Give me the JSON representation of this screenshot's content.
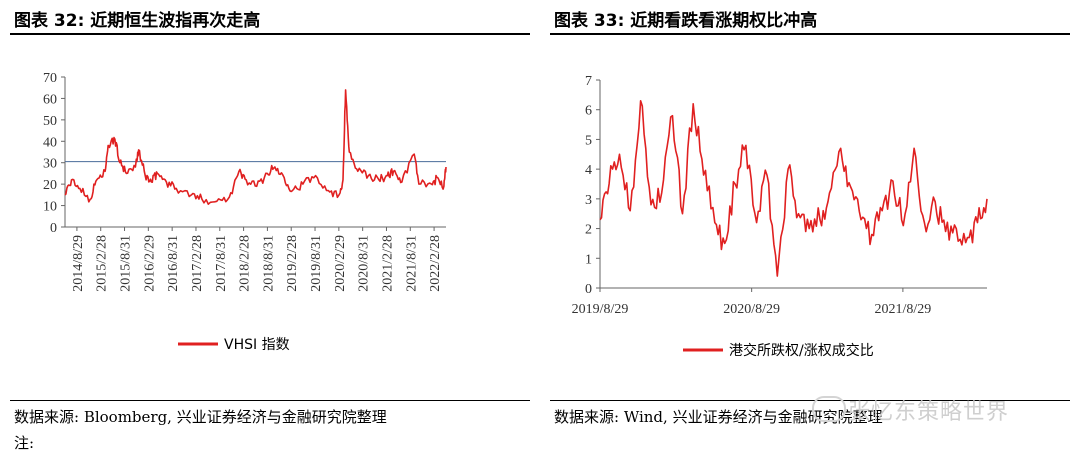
{
  "left": {
    "title": "图表 32:  近期恒生波指再次走高",
    "source": "数据来源:  Bloomberg, 兴业证券经济与金融研究院整理",
    "note": "注:"
  },
  "right": {
    "title": "图表 33:  近期看跌看涨期权比冲高",
    "source": "数据来源:  Wind, 兴业证券经济与金融研究院整理"
  },
  "watermark": "张忆东策略世界",
  "chart_data": [
    {
      "type": "line",
      "title": "",
      "xlabel": "",
      "ylabel": "",
      "ylim": [
        0,
        70
      ],
      "yticks": [
        0,
        10,
        20,
        30,
        40,
        50,
        60,
        70
      ],
      "x_tick_labels": [
        "2014/8/29",
        "2015/2/28",
        "2015/8/31",
        "2016/2/29",
        "2016/8/31",
        "2017/2/28",
        "2017/8/31",
        "2018/2/28",
        "2018/8/31",
        "2019/2/28",
        "2019/8/31",
        "2020/2/29",
        "2020/8/31",
        "2021/2/28",
        "2021/8/31",
        "2022/2/28"
      ],
      "legend": "bottom",
      "reference_line": {
        "y": 30.5,
        "color": "#4a6b9a"
      },
      "series": [
        {
          "name": "VHSI 指数",
          "color": "#e02020",
          "x": [
            "2014/8/29",
            "2014/10/15",
            "2014/12/15",
            "2015/2/28",
            "2015/4/15",
            "2015/6/15",
            "2015/7/10",
            "2015/8/25",
            "2015/9/30",
            "2015/11/15",
            "2016/1/20",
            "2016/2/12",
            "2016/3/31",
            "2016/5/15",
            "2016/6/27",
            "2016/8/31",
            "2016/11/10",
            "2017/2/28",
            "2017/5/15",
            "2017/8/31",
            "2017/11/30",
            "2018/2/7",
            "2018/3/31",
            "2018/6/15",
            "2018/8/31",
            "2018/10/25",
            "2018/12/31",
            "2019/2/28",
            "2019/5/15",
            "2019/8/15",
            "2019/11/15",
            "2020/1/31",
            "2020/2/29",
            "2020/3/19",
            "2020/4/15",
            "2020/6/15",
            "2020/8/31",
            "2020/11/15",
            "2021/1/15",
            "2021/2/28",
            "2021/4/30",
            "2021/7/28",
            "2021/8/31",
            "2021/11/30",
            "2022/1/15",
            "2022/2/28",
            "2022/3/15"
          ],
          "values": [
            15,
            22,
            18,
            13,
            22,
            26,
            38,
            41,
            30,
            25,
            28,
            36,
            24,
            21,
            25,
            21,
            18,
            15,
            13,
            12,
            14,
            26,
            22,
            19,
            25,
            28,
            23,
            17,
            20,
            24,
            17,
            15,
            22,
            64,
            35,
            26,
            24,
            22,
            24,
            26,
            21,
            34,
            20,
            20,
            23,
            19,
            28
          ]
        }
      ]
    },
    {
      "type": "line",
      "title": "",
      "xlabel": "",
      "ylabel": "",
      "ylim": [
        0,
        7
      ],
      "yticks": [
        0,
        1,
        2,
        3,
        4,
        5,
        6,
        7
      ],
      "x_tick_labels": [
        "2019/8/29",
        "2020/8/29",
        "2021/8/29"
      ],
      "legend": "bottom",
      "series": [
        {
          "name": "港交所跌权/涨权成交比",
          "color": "#e02020",
          "x": [
            "2019/8/29",
            "2019/9/20",
            "2019/10/15",
            "2019/11/10",
            "2019/12/5",
            "2019/12/30",
            "2020/1/25",
            "2020/2/20",
            "2020/3/15",
            "2020/4/10",
            "2020/5/5",
            "2020/6/1",
            "2020/6/25",
            "2020/7/20",
            "2020/8/15",
            "2020/9/10",
            "2020/10/5",
            "2020/10/30",
            "2020/11/25",
            "2020/12/20",
            "2021/1/15",
            "2021/2/10",
            "2021/3/5",
            "2021/4/1",
            "2021/4/25",
            "2021/5/20",
            "2021/6/15",
            "2021/7/10",
            "2021/8/5",
            "2021/8/30",
            "2021/9/25",
            "2021/10/20",
            "2021/11/15",
            "2021/12/10",
            "2022/1/5",
            "2022/2/1",
            "2022/2/25",
            "2022/3/20"
          ],
          "values": [
            2.3,
            3.5,
            4.5,
            2.6,
            6.3,
            2.8,
            3.2,
            5.8,
            2.5,
            6.2,
            3.8,
            2.2,
            1.5,
            3.5,
            4.8,
            2.2,
            3.8,
            0.4,
            4.0,
            2.5,
            2.0,
            2.3,
            3.2,
            4.7,
            3.4,
            2.3,
            1.8,
            2.6,
            3.6,
            2.1,
            4.7,
            2.2,
            2.9,
            1.9,
            2.0,
            1.7,
            2.2,
            3.0
          ]
        }
      ]
    }
  ]
}
